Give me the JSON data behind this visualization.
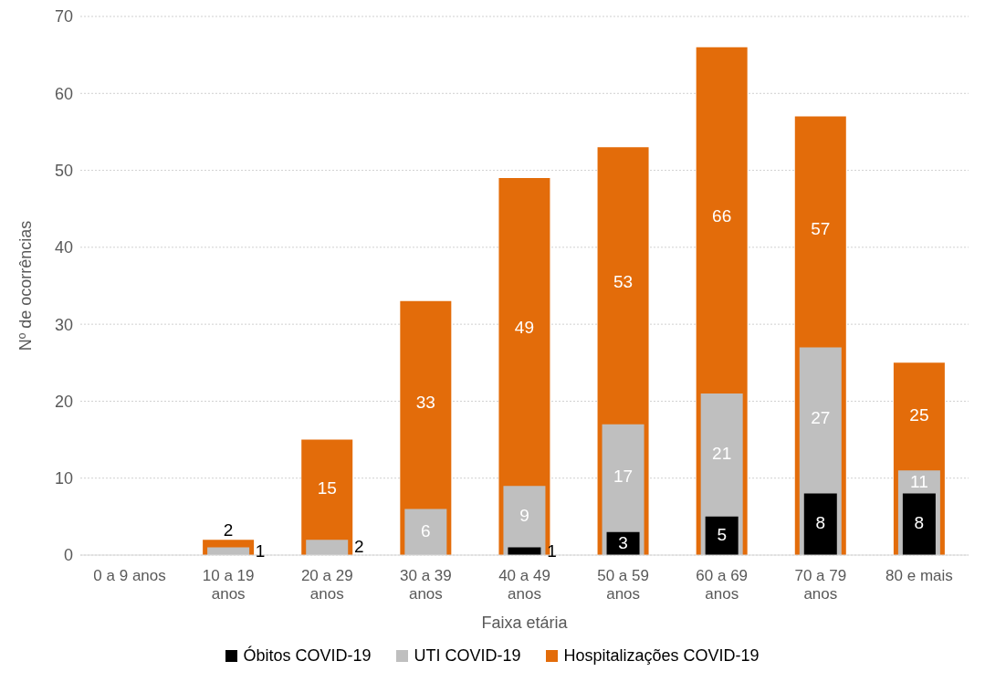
{
  "chart_data": {
    "type": "bar",
    "xlabel": "Faixa etária",
    "ylabel": "Nº de ocorrências",
    "categories": [
      "0 a 9 anos",
      "10 a 19 anos",
      "20 a 29 anos",
      "30 a 39 anos",
      "40 a 49 anos",
      "50 a 59 anos",
      "60 a 69 anos",
      "70 a 79 anos",
      "80 e mais"
    ],
    "series": [
      {
        "name": "Óbitos COVID-19",
        "color": "#000000",
        "values": [
          null,
          null,
          null,
          null,
          1,
          3,
          5,
          8,
          8
        ]
      },
      {
        "name": "UTI COVID-19",
        "color": "#bfbfbf",
        "values": [
          null,
          1,
          2,
          6,
          9,
          17,
          21,
          27,
          11
        ]
      },
      {
        "name": "Hospitalizações COVID-19",
        "color": "#e36c0a",
        "values": [
          null,
          2,
          15,
          33,
          49,
          53,
          66,
          57,
          25
        ]
      }
    ],
    "ylim": [
      0,
      70
    ],
    "yticks": [
      0,
      10,
      20,
      30,
      40,
      50,
      60,
      70
    ],
    "grid": "y",
    "legend": "bottom",
    "data_labels": true
  }
}
